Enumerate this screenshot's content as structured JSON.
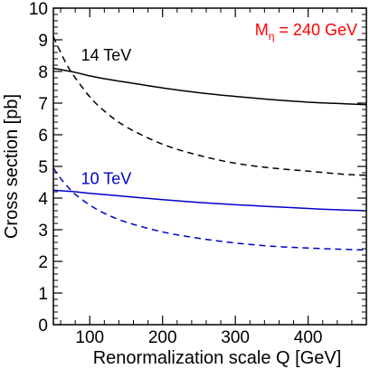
{
  "chart_data": {
    "type": "line",
    "title": "",
    "xlabel": "Renormalization scale Q  [GeV]",
    "ylabel": "Cross section  [pb]",
    "xlim": [
      50,
      480
    ],
    "ylim": [
      0,
      10
    ],
    "x_ticks": [
      100,
      200,
      300,
      400
    ],
    "y_ticks": [
      0,
      1,
      2,
      3,
      4,
      5,
      6,
      7,
      8,
      9,
      10
    ],
    "annotation": {
      "prefix": "M",
      "subscript": "η",
      "suffix": " = 240 GeV",
      "color": "#ff0000"
    },
    "series": [
      {
        "name": "14 TeV",
        "color": "#000000",
        "dash": "solid",
        "x": [
          50,
          60,
          80,
          100,
          120,
          150,
          200,
          250,
          300,
          350,
          400,
          450,
          480
        ],
        "y": [
          8.1,
          8.06,
          7.97,
          7.86,
          7.77,
          7.66,
          7.48,
          7.33,
          7.21,
          7.11,
          7.03,
          6.98,
          6.95
        ]
      },
      {
        "name": "",
        "color": "#000000",
        "dash": "dashed",
        "x": [
          50,
          60,
          70,
          80,
          100,
          120,
          150,
          200,
          250,
          300,
          350,
          400,
          450,
          480
        ],
        "y": [
          9.1,
          8.6,
          8.15,
          7.8,
          7.2,
          6.75,
          6.25,
          5.7,
          5.35,
          5.1,
          4.95,
          4.85,
          4.75,
          4.72
        ]
      },
      {
        "name": "10 TeV",
        "color": "#0000cc",
        "dash": "solid",
        "x": [
          50,
          80,
          100,
          150,
          200,
          250,
          300,
          350,
          400,
          450,
          480
        ],
        "y": [
          4.25,
          4.2,
          4.15,
          4.05,
          3.95,
          3.86,
          3.79,
          3.73,
          3.67,
          3.62,
          3.6
        ]
      },
      {
        "name": "",
        "color": "#0000cc",
        "dash": "dashed",
        "x": [
          50,
          60,
          70,
          80,
          100,
          120,
          150,
          200,
          250,
          300,
          350,
          400,
          450,
          480
        ],
        "y": [
          4.95,
          4.62,
          4.35,
          4.12,
          3.78,
          3.52,
          3.24,
          2.93,
          2.73,
          2.58,
          2.48,
          2.42,
          2.38,
          2.36
        ]
      }
    ],
    "series_labels": [
      {
        "text": "14 TeV",
        "color": "#000000",
        "x": 88,
        "y": 8.35
      },
      {
        "text": "10 TeV",
        "color": "#0000cc",
        "x": 88,
        "y": 4.45
      }
    ]
  }
}
